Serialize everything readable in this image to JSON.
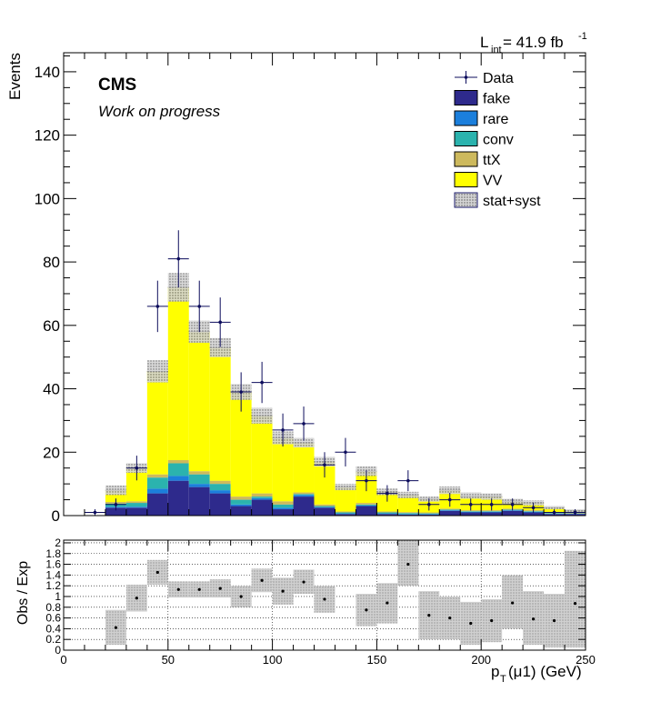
{
  "header": {
    "lumi_text": "L",
    "lumi_sub": "int",
    "lumi_value": " = 41.9 fb",
    "lumi_sup": "-1"
  },
  "labels": {
    "cms": "CMS",
    "subtitle": "Work on progress",
    "y_label_top": "Events",
    "y_label_bottom": "Obs / Exp",
    "x_label_main": "p",
    "x_label_sub": "T",
    "x_label_rest": "(μ1) (GeV)"
  },
  "legend": [
    {
      "label": "Data",
      "kind": "data"
    },
    {
      "label": "fake",
      "kind": "fill",
      "color": "#2e2a8c"
    },
    {
      "label": "rare",
      "kind": "fill",
      "color": "#1b7fdc"
    },
    {
      "label": "conv",
      "kind": "fill",
      "color": "#2bb3ae"
    },
    {
      "label": "ttX",
      "kind": "fill",
      "color": "#cdb95d"
    },
    {
      "label": "VV",
      "kind": "fill",
      "color": "#ffff00"
    },
    {
      "label": "stat+syst",
      "kind": "hatch"
    }
  ],
  "colors": {
    "fake": "#2e2a8c",
    "rare": "#1b7fdc",
    "conv": "#2bb3ae",
    "ttX": "#cdb95d",
    "VV": "#ffff00",
    "data": "#0c0c5c",
    "band": "#b9b9b9"
  },
  "chart_data": [
    {
      "type": "bar",
      "stacked": true,
      "bin_edges": [
        0,
        10,
        20,
        30,
        40,
        50,
        60,
        70,
        80,
        90,
        100,
        110,
        120,
        130,
        140,
        150,
        160,
        170,
        180,
        190,
        200,
        210,
        220,
        230,
        240,
        250
      ],
      "xlim": [
        0,
        250
      ],
      "ylim": [
        0,
        146
      ],
      "x_ticks": [
        0,
        50,
        100,
        150,
        200,
        250
      ],
      "y_ticks": [
        0,
        20,
        40,
        60,
        80,
        100,
        120,
        140
      ],
      "ylabel": "Events",
      "series": [
        {
          "name": "fake",
          "values": [
            0,
            0,
            2.5,
            2.5,
            7,
            11,
            9,
            7,
            3,
            5,
            2,
            6,
            2.5,
            0.5,
            3,
            0.5,
            0.3,
            0.3,
            1.5,
            1.0,
            1.0,
            1.5,
            1.0,
            0.5,
            0.5
          ]
        },
        {
          "name": "rare",
          "values": [
            0,
            0,
            0.3,
            0.3,
            1.5,
            1.5,
            1.0,
            1.0,
            0.5,
            0.5,
            0.5,
            0.5,
            0.2,
            0.2,
            0.2,
            0.2,
            0.2,
            0.2,
            0.2,
            0.2,
            0.2,
            0.2,
            0.2,
            0.1,
            0.1
          ]
        },
        {
          "name": "conv",
          "values": [
            0,
            0,
            1.0,
            1.2,
            3.5,
            4.0,
            3.0,
            2.0,
            1.5,
            0.5,
            1.0,
            0.3,
            0.3,
            0.3,
            0.3,
            0.3,
            0.3,
            0.2,
            0.2,
            0.2,
            0.2,
            0.2,
            0.2,
            0.2,
            0.1
          ]
        },
        {
          "name": "ttX",
          "values": [
            0,
            0,
            0.5,
            0.5,
            1.0,
            1.0,
            1.0,
            1.0,
            1.0,
            1.0,
            1.0,
            0.5,
            0.5,
            0.3,
            0.5,
            0.3,
            0.3,
            0.3,
            0.3,
            0.3,
            0.3,
            0.3,
            0.3,
            0.2,
            0.2
          ]
        },
        {
          "name": "VV",
          "values": [
            0,
            0,
            3.7,
            10.5,
            32.5,
            54.5,
            44,
            42,
            33,
            24.5,
            20,
            15.7,
            13.5,
            7.7,
            10,
            6.2,
            5.4,
            4.2,
            5.8,
            4.3,
            4.3,
            2.3,
            2.3,
            1.5,
            0.6
          ]
        }
      ],
      "uncertainty": {
        "name": "stat+syst",
        "total": [
          0,
          0,
          8,
          15,
          45.5,
          72,
          58,
          53,
          39,
          31.5,
          24.5,
          23,
          17,
          9,
          14,
          7.5,
          6.5,
          5.2,
          8,
          6.3,
          6,
          4.5,
          4,
          2.5,
          1.5
        ],
        "half_width": [
          0,
          0,
          1.5,
          1.5,
          3.5,
          4.5,
          3.5,
          3.0,
          2.5,
          2.5,
          2.0,
          1.5,
          1.5,
          1.0,
          1.5,
          1.0,
          1.0,
          0.8,
          1.2,
          1.0,
          1.0,
          0.8,
          0.8,
          0.5,
          0.5
        ]
      },
      "data": {
        "name": "Data",
        "x": [
          15,
          25,
          35,
          45,
          55,
          65,
          75,
          85,
          95,
          105,
          115,
          125,
          135,
          145,
          155,
          165,
          175,
          185,
          195,
          205,
          215,
          225,
          235,
          245
        ],
        "y": [
          1,
          3.5,
          15,
          66,
          81,
          66,
          61,
          39,
          42,
          27,
          29,
          16,
          20,
          11,
          7,
          11,
          3.5,
          5,
          3.5,
          3.5,
          3.5,
          2.5,
          1,
          1
        ],
        "err": [
          1,
          1.9,
          3.9,
          8.1,
          9.0,
          8.1,
          7.8,
          6.2,
          6.5,
          5.2,
          5.4,
          4.0,
          4.5,
          3.3,
          2.6,
          3.3,
          1.9,
          2.2,
          1.9,
          1.9,
          1.9,
          1.6,
          1,
          1
        ]
      }
    },
    {
      "type": "scatter",
      "ylabel": "Obs / Exp",
      "xlabel": "pT(μ1) (GeV)",
      "xlim": [
        0,
        250
      ],
      "ylim": [
        0,
        2.05
      ],
      "x_ticks": [
        0,
        50,
        100,
        150,
        200,
        250
      ],
      "y_ticks": [
        0,
        0.2,
        0.4,
        0.6,
        0.8,
        1,
        1.2,
        1.4,
        1.6,
        1.8,
        2
      ],
      "x": [
        25,
        35,
        45,
        55,
        65,
        75,
        85,
        95,
        105,
        115,
        125,
        145,
        155,
        165,
        175,
        185,
        195,
        205,
        215,
        225,
        235,
        245
      ],
      "y": [
        0.42,
        0.97,
        1.45,
        1.13,
        1.13,
        1.15,
        1.0,
        1.3,
        1.1,
        1.27,
        0.95,
        0.75,
        0.88,
        1.6,
        0.65,
        0.6,
        0.5,
        0.55,
        0.88,
        0.58,
        0.55,
        0.87
      ],
      "band": [
        {
          "x0": 20,
          "x1": 30,
          "lo": 0.1,
          "hi": 0.75
        },
        {
          "x0": 30,
          "x1": 40,
          "lo": 0.72,
          "hi": 1.22
        },
        {
          "x0": 40,
          "x1": 50,
          "lo": 1.22,
          "hi": 1.68
        },
        {
          "x0": 50,
          "x1": 60,
          "lo": 0.98,
          "hi": 1.28
        },
        {
          "x0": 60,
          "x1": 70,
          "lo": 0.98,
          "hi": 1.28
        },
        {
          "x0": 70,
          "x1": 80,
          "lo": 0.98,
          "hi": 1.32
        },
        {
          "x0": 80,
          "x1": 90,
          "lo": 0.8,
          "hi": 1.2
        },
        {
          "x0": 90,
          "x1": 100,
          "lo": 1.08,
          "hi": 1.52
        },
        {
          "x0": 100,
          "x1": 110,
          "lo": 0.85,
          "hi": 1.35
        },
        {
          "x0": 110,
          "x1": 120,
          "lo": 1.05,
          "hi": 1.5
        },
        {
          "x0": 120,
          "x1": 130,
          "lo": 0.7,
          "hi": 1.2
        },
        {
          "x0": 140,
          "x1": 150,
          "lo": 0.45,
          "hi": 1.05
        },
        {
          "x0": 150,
          "x1": 160,
          "lo": 0.5,
          "hi": 1.25
        },
        {
          "x0": 160,
          "x1": 170,
          "lo": 1.2,
          "hi": 2.05
        },
        {
          "x0": 170,
          "x1": 180,
          "lo": 0.2,
          "hi": 1.1
        },
        {
          "x0": 180,
          "x1": 190,
          "lo": 0.2,
          "hi": 1.0
        },
        {
          "x0": 190,
          "x1": 200,
          "lo": 0.1,
          "hi": 0.9
        },
        {
          "x0": 200,
          "x1": 210,
          "lo": 0.15,
          "hi": 0.95
        },
        {
          "x0": 210,
          "x1": 220,
          "lo": 0.4,
          "hi": 1.4
        },
        {
          "x0": 220,
          "x1": 230,
          "lo": 0.1,
          "hi": 1.1
        },
        {
          "x0": 230,
          "x1": 240,
          "lo": 0.05,
          "hi": 1.05
        },
        {
          "x0": 240,
          "x1": 250,
          "lo": 0.05,
          "hi": 1.85
        }
      ]
    }
  ]
}
